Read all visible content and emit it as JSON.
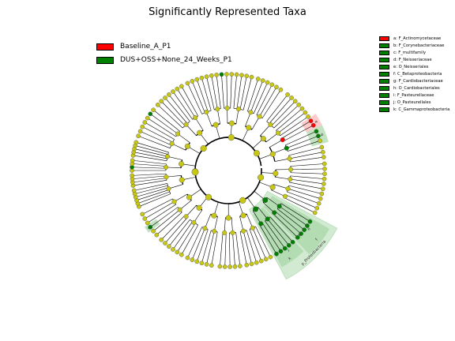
{
  "title": "Significantly Represented Taxa",
  "classes": [
    {
      "name": "Baseline_A_P1",
      "color": "#ff0000"
    },
    {
      "name": "DUS+OSS+None_24_Weeks_P1",
      "color": "#008000"
    }
  ],
  "key": [
    {
      "label": "a: F_Actinomycetaceae",
      "color": "#ff0000"
    },
    {
      "label": "b: F_Corynebacteriaceae",
      "color": "#008000"
    },
    {
      "label": "c: F_multifamily",
      "color": "#008000"
    },
    {
      "label": "d: F_Neisseriaceae",
      "color": "#008000"
    },
    {
      "label": "e: O_Neisseriales",
      "color": "#008000"
    },
    {
      "label": "f: C_Betaproteobacteria",
      "color": "#008000"
    },
    {
      "label": "g: F_Cardiobacteriaceae",
      "color": "#008000"
    },
    {
      "label": "h: O_Cardiobacteriales",
      "color": "#008000"
    },
    {
      "label": "i: F_Pasteurellaceae",
      "color": "#008000"
    },
    {
      "label": "j: O_Pasteurellales",
      "color": "#008000"
    },
    {
      "label": "k: C_Gammaproteobacteria",
      "color": "#008000"
    }
  ],
  "clade_labels": {
    "proteobacteria": "p_Proteobacteria",
    "a": "a",
    "b": "b",
    "c": "c",
    "e": "e",
    "f": "f",
    "h": "h",
    "i": "i",
    "j": "j",
    "k": "k"
  },
  "colors": {
    "node_default": "#c8c814",
    "node_green": "#008000",
    "node_red": "#ff0000",
    "shade_green": "#9ad09a",
    "shade_red": "#ffb4b4"
  }
}
